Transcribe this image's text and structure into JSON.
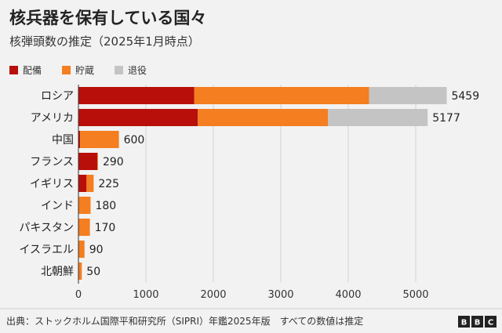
{
  "chart_data": {
    "type": "bar",
    "orientation": "horizontal",
    "stacked": true,
    "title": "核兵器を保有している国々",
    "subtitle": "核弾頭数の推定（2025年1月時点）",
    "categories": [
      "ロシア",
      "アメリカ",
      "中国",
      "フランス",
      "イギリス",
      "インド",
      "パキスタン",
      "イスラエル",
      "北朝鮮"
    ],
    "series": [
      {
        "name": "配備",
        "color": "#b80f0a",
        "values": [
          1718,
          1770,
          24,
          280,
          120,
          0,
          0,
          0,
          0
        ]
      },
      {
        "name": "貯蔵",
        "color": "#f47e20",
        "values": [
          2591,
          1930,
          576,
          10,
          105,
          180,
          170,
          90,
          50
        ]
      },
      {
        "name": "退役",
        "color": "#c4c4c4",
        "values": [
          1150,
          1477,
          0,
          0,
          0,
          0,
          0,
          0,
          0
        ]
      }
    ],
    "totals": [
      5459,
      5177,
      600,
      290,
      225,
      180,
      170,
      90,
      50
    ],
    "xlim": [
      0,
      5500
    ],
    "xticks": [
      0,
      1000,
      2000,
      3000,
      4000,
      5000
    ],
    "grid": true,
    "legend": "top-left"
  },
  "footer": {
    "source": "出典：ストックホルム国際平和研究所（SIPRI）年鑑2025年版　すべての数値は推定",
    "logo_letters": [
      "B",
      "B",
      "C"
    ]
  }
}
